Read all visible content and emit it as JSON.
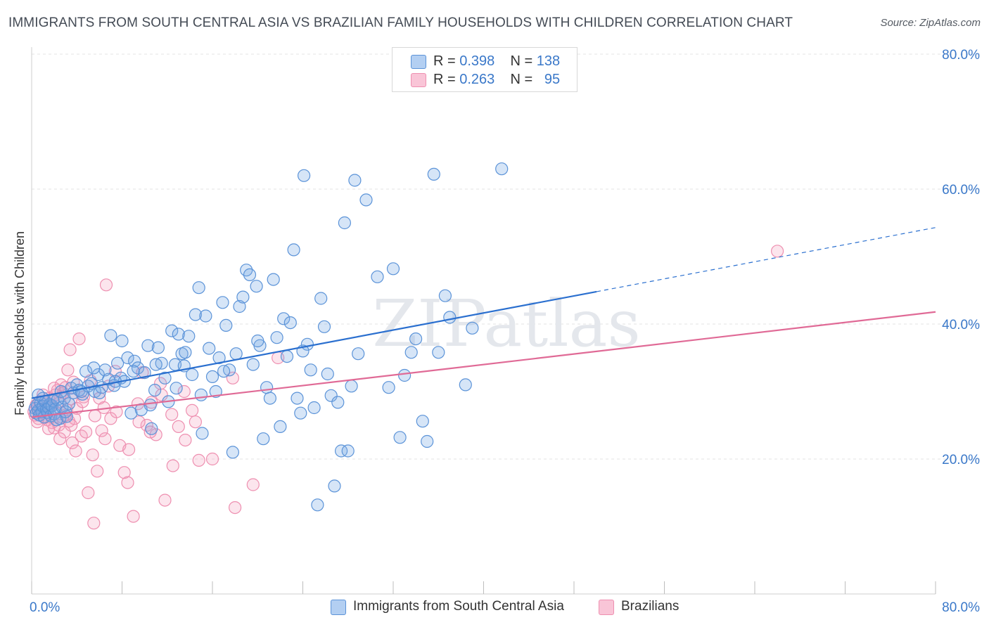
{
  "header": {
    "title": "IMMIGRANTS FROM SOUTH CENTRAL ASIA VS BRAZILIAN FAMILY HOUSEHOLDS WITH CHILDREN CORRELATION CHART",
    "source": "Source: ZipAtlas.com"
  },
  "watermark": "ZIPatlas",
  "legend_top": {
    "rows": [
      {
        "r_label": "R =",
        "r_value": "0.398",
        "n_label": "N =",
        "n_value": "138"
      },
      {
        "r_label": "R =",
        "r_value": "0.263",
        "n_label": "N =",
        "n_value": "95"
      }
    ]
  },
  "chart_data": {
    "type": "scatter",
    "title": "IMMIGRANTS FROM SOUTH CENTRAL ASIA VS BRAZILIAN FAMILY HOUSEHOLDS WITH CHILDREN CORRELATION CHART",
    "xlabel": "",
    "ylabel": "Family Households with Children",
    "xlim": [
      0,
      80
    ],
    "ylim": [
      0,
      80
    ],
    "x_tick_labels": [
      "0.0%",
      "80.0%"
    ],
    "y_tick_labels": [
      "20.0%",
      "40.0%",
      "60.0%",
      "80.0%"
    ],
    "y_ticks": [
      20,
      40,
      60,
      80
    ],
    "grid": true,
    "legend_position": "bottom",
    "colors": {
      "blue": "#5b93d8",
      "blue_line": "#2a6fcf",
      "pink": "#ee8fb0",
      "pink_line": "#e06a96",
      "tick": "#3a78c9"
    },
    "series": [
      {
        "name": "Immigrants from South Central Asia",
        "color": "blue",
        "r": 0.398,
        "n": 138,
        "trend": {
          "x0": 0,
          "y0": 29.0,
          "x1": 50,
          "y1": 44.8,
          "dash_x1": 80,
          "dash_y1": 54.3
        },
        "points": [
          [
            0.3,
            27.5
          ],
          [
            0.4,
            26.8
          ],
          [
            0.5,
            28.0
          ],
          [
            0.6,
            27.2
          ],
          [
            0.7,
            26.5
          ],
          [
            0.8,
            28.3
          ],
          [
            0.9,
            27.0
          ],
          [
            1.0,
            27.8
          ],
          [
            1.1,
            26.2
          ],
          [
            1.2,
            28.5
          ],
          [
            1.3,
            27.3
          ],
          [
            1.4,
            26.9
          ],
          [
            1.5,
            27.6
          ],
          [
            1.6,
            28.1
          ],
          [
            1.7,
            26.4
          ],
          [
            1.8,
            27.9
          ],
          [
            1.9,
            28.6
          ],
          [
            2.0,
            26.7
          ],
          [
            2.1,
            27.4
          ],
          [
            2.3,
            28.8
          ],
          [
            2.5,
            26.0
          ],
          [
            2.7,
            27.7
          ],
          [
            2.9,
            29.0
          ],
          [
            3.1,
            26.3
          ],
          [
            3.3,
            28.2
          ],
          [
            3.5,
            30.5
          ],
          [
            3.7,
            29.8
          ],
          [
            4.0,
            31.0
          ],
          [
            4.2,
            30.2
          ],
          [
            4.5,
            29.6
          ],
          [
            4.8,
            33.0
          ],
          [
            5.0,
            30.8
          ],
          [
            5.3,
            31.2
          ],
          [
            5.6,
            30.0
          ],
          [
            5.9,
            32.5
          ],
          [
            6.2,
            30.6
          ],
          [
            6.5,
            33.2
          ],
          [
            6.8,
            31.8
          ],
          [
            7.0,
            38.3
          ],
          [
            7.3,
            30.9
          ],
          [
            7.6,
            34.2
          ],
          [
            7.9,
            32.0
          ],
          [
            8.2,
            31.5
          ],
          [
            8.5,
            35.0
          ],
          [
            8.8,
            26.8
          ],
          [
            9.1,
            34.5
          ],
          [
            9.4,
            33.5
          ],
          [
            9.7,
            27.3
          ],
          [
            10.0,
            32.8
          ],
          [
            10.3,
            36.8
          ],
          [
            10.6,
            24.5
          ],
          [
            10.9,
            30.2
          ],
          [
            11.2,
            36.5
          ],
          [
            11.5,
            34.2
          ],
          [
            11.8,
            32.0
          ],
          [
            12.1,
            28.5
          ],
          [
            12.4,
            39.0
          ],
          [
            12.7,
            34.0
          ],
          [
            13.0,
            38.5
          ],
          [
            13.3,
            35.6
          ],
          [
            13.6,
            35.8
          ],
          [
            13.9,
            38.2
          ],
          [
            14.2,
            32.5
          ],
          [
            14.5,
            41.4
          ],
          [
            14.8,
            45.4
          ],
          [
            15.1,
            23.8
          ],
          [
            15.4,
            41.2
          ],
          [
            15.7,
            36.4
          ],
          [
            16.0,
            32.2
          ],
          [
            16.3,
            30.0
          ],
          [
            16.6,
            35.0
          ],
          [
            16.9,
            43.2
          ],
          [
            17.2,
            39.8
          ],
          [
            17.5,
            33.2
          ],
          [
            17.8,
            21.0
          ],
          [
            18.1,
            35.6
          ],
          [
            18.4,
            42.6
          ],
          [
            18.7,
            44.0
          ],
          [
            19.0,
            48.0
          ],
          [
            19.3,
            47.3
          ],
          [
            19.6,
            34.0
          ],
          [
            19.9,
            45.6
          ],
          [
            20.2,
            36.8
          ],
          [
            20.5,
            23.0
          ],
          [
            20.8,
            30.6
          ],
          [
            21.1,
            29.0
          ],
          [
            21.4,
            46.6
          ],
          [
            21.7,
            38.0
          ],
          [
            22.0,
            24.8
          ],
          [
            22.3,
            40.8
          ],
          [
            22.6,
            35.2
          ],
          [
            22.9,
            40.2
          ],
          [
            23.2,
            51.0
          ],
          [
            23.5,
            29.0
          ],
          [
            23.8,
            26.8
          ],
          [
            24.1,
            62.0
          ],
          [
            24.4,
            37.0
          ],
          [
            24.7,
            33.2
          ],
          [
            25.0,
            27.6
          ],
          [
            25.3,
            13.2
          ],
          [
            25.6,
            43.8
          ],
          [
            25.9,
            39.6
          ],
          [
            26.2,
            32.6
          ],
          [
            26.5,
            29.4
          ],
          [
            26.8,
            16.0
          ],
          [
            27.1,
            28.4
          ],
          [
            27.4,
            21.2
          ],
          [
            27.7,
            55.0
          ],
          [
            28.0,
            21.2
          ],
          [
            28.3,
            30.8
          ],
          [
            28.6,
            61.3
          ],
          [
            28.9,
            35.6
          ],
          [
            29.6,
            58.4
          ],
          [
            30.6,
            47.0
          ],
          [
            31.6,
            30.6
          ],
          [
            32.0,
            48.2
          ],
          [
            32.6,
            23.2
          ],
          [
            33.0,
            32.4
          ],
          [
            33.6,
            35.8
          ],
          [
            34.0,
            37.8
          ],
          [
            34.6,
            25.6
          ],
          [
            35.0,
            22.6
          ],
          [
            35.6,
            62.2
          ],
          [
            36.0,
            35.8
          ],
          [
            36.6,
            44.2
          ],
          [
            37.0,
            41.0
          ],
          [
            38.4,
            31.0
          ],
          [
            39.0,
            39.4
          ],
          [
            41.6,
            63.0
          ],
          [
            2.2,
            25.8
          ],
          [
            1.0,
            29.0
          ],
          [
            3.0,
            27.0
          ],
          [
            5.5,
            33.5
          ],
          [
            8.0,
            37.5
          ],
          [
            9.0,
            33.0
          ],
          [
            11.0,
            34.0
          ],
          [
            12.8,
            30.5
          ],
          [
            15.0,
            29.5
          ],
          [
            0.6,
            29.5
          ],
          [
            2.6,
            30.0
          ],
          [
            4.4,
            30.0
          ],
          [
            6.0,
            29.8
          ],
          [
            7.4,
            31.5
          ],
          [
            10.5,
            28.0
          ],
          [
            13.5,
            33.8
          ],
          [
            17.0,
            33.0
          ],
          [
            20.0,
            37.5
          ],
          [
            24.0,
            36.0
          ]
        ]
      },
      {
        "name": "Brazilians",
        "color": "pink",
        "r": 0.263,
        "n": 95,
        "trend": {
          "x0": 0,
          "y0": 26.2,
          "x1": 80,
          "y1": 41.8
        },
        "points": [
          [
            0.2,
            27.0
          ],
          [
            0.3,
            26.5
          ],
          [
            0.4,
            28.0
          ],
          [
            0.5,
            27.5
          ],
          [
            0.6,
            26.0
          ],
          [
            0.7,
            28.5
          ],
          [
            0.8,
            27.2
          ],
          [
            0.9,
            26.8
          ],
          [
            1.0,
            27.8
          ],
          [
            1.1,
            26.3
          ],
          [
            1.2,
            28.2
          ],
          [
            1.3,
            27.6
          ],
          [
            1.4,
            25.8
          ],
          [
            1.5,
            29.0
          ],
          [
            1.6,
            26.6
          ],
          [
            1.7,
            27.9
          ],
          [
            1.8,
            25.4
          ],
          [
            1.9,
            28.8
          ],
          [
            2.0,
            24.6
          ],
          [
            2.1,
            29.5
          ],
          [
            2.2,
            26.9
          ],
          [
            2.3,
            30.2
          ],
          [
            2.4,
            25.0
          ],
          [
            2.5,
            28.4
          ],
          [
            2.6,
            31.0
          ],
          [
            2.7,
            26.2
          ],
          [
            2.8,
            29.8
          ],
          [
            2.9,
            24.0
          ],
          [
            3.0,
            30.6
          ],
          [
            3.1,
            27.3
          ],
          [
            3.2,
            33.2
          ],
          [
            3.3,
            25.6
          ],
          [
            3.4,
            36.2
          ],
          [
            3.5,
            28.9
          ],
          [
            3.6,
            22.4
          ],
          [
            3.7,
            31.4
          ],
          [
            3.8,
            26.0
          ],
          [
            3.9,
            21.2
          ],
          [
            4.0,
            27.5
          ],
          [
            4.2,
            37.8
          ],
          [
            4.4,
            23.4
          ],
          [
            4.6,
            29.2
          ],
          [
            4.8,
            24.0
          ],
          [
            5.0,
            15.0
          ],
          [
            5.2,
            31.6
          ],
          [
            5.4,
            20.6
          ],
          [
            5.6,
            26.4
          ],
          [
            5.8,
            18.2
          ],
          [
            6.0,
            29.0
          ],
          [
            6.2,
            24.2
          ],
          [
            6.4,
            27.6
          ],
          [
            6.6,
            45.8
          ],
          [
            6.8,
            30.8
          ],
          [
            7.0,
            26.0
          ],
          [
            7.4,
            33.0
          ],
          [
            7.8,
            22.0
          ],
          [
            8.2,
            18.0
          ],
          [
            8.6,
            21.4
          ],
          [
            9.0,
            11.5
          ],
          [
            9.4,
            28.2
          ],
          [
            9.8,
            32.8
          ],
          [
            10.2,
            25.0
          ],
          [
            10.6,
            28.4
          ],
          [
            11.0,
            23.6
          ],
          [
            11.4,
            31.2
          ],
          [
            11.8,
            13.9
          ],
          [
            12.4,
            26.6
          ],
          [
            13.0,
            24.8
          ],
          [
            13.6,
            22.8
          ],
          [
            14.2,
            27.2
          ],
          [
            14.8,
            19.8
          ],
          [
            17.8,
            32.0
          ],
          [
            18.0,
            12.8
          ],
          [
            19.6,
            16.2
          ],
          [
            21.8,
            35.0
          ],
          [
            66.0,
            50.8
          ],
          [
            0.5,
            25.5
          ],
          [
            1.0,
            29.5
          ],
          [
            1.5,
            24.5
          ],
          [
            2.0,
            30.5
          ],
          [
            2.5,
            23.0
          ],
          [
            3.0,
            26.5
          ],
          [
            3.5,
            25.0
          ],
          [
            4.5,
            28.5
          ],
          [
            5.5,
            10.5
          ],
          [
            6.5,
            23.0
          ],
          [
            7.5,
            27.0
          ],
          [
            8.5,
            16.5
          ],
          [
            9.5,
            25.5
          ],
          [
            10.5,
            24.0
          ],
          [
            11.5,
            29.5
          ],
          [
            12.5,
            19.0
          ],
          [
            13.5,
            30.0
          ],
          [
            14.5,
            25.5
          ],
          [
            16.0,
            20.0
          ]
        ]
      }
    ]
  },
  "bottom_legend": {
    "items": [
      "Immigrants from South Central Asia",
      "Brazilians"
    ]
  }
}
